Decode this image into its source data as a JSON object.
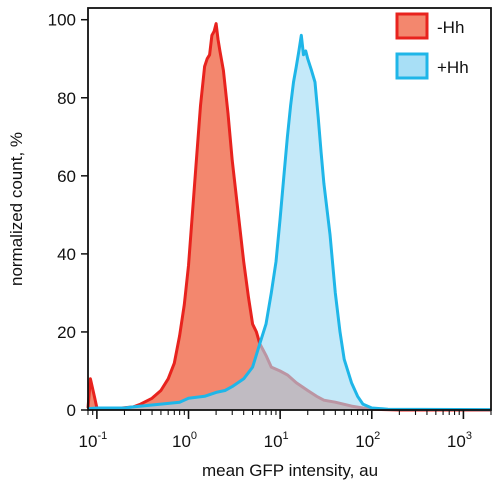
{
  "chart_data": {
    "type": "area",
    "xlabel": "mean GFP intensity, au",
    "ylabel": "normalized count, %",
    "x_scale": "log",
    "xlim": [
      0.08,
      2000
    ],
    "ylim": [
      0,
      103
    ],
    "x_ticks": [
      {
        "value": 0.1,
        "base": "10",
        "exp": "-1"
      },
      {
        "value": 1,
        "base": "10",
        "exp": "0"
      },
      {
        "value": 10,
        "base": "10",
        "exp": "1"
      },
      {
        "value": 100,
        "base": "10",
        "exp": "2"
      },
      {
        "value": 1000,
        "base": "10",
        "exp": "3"
      }
    ],
    "y_ticks": [
      "0",
      "20",
      "40",
      "60",
      "80",
      "100"
    ],
    "legend_position": "top-right",
    "series": [
      {
        "name": "-Hh",
        "stroke": "#e8231e",
        "fill": "#f27a5e",
        "points": [
          [
            0.08,
            0.5
          ],
          [
            0.085,
            8
          ],
          [
            0.095,
            3
          ],
          [
            0.1,
            0.5
          ],
          [
            0.12,
            0.3
          ],
          [
            0.15,
            0.3
          ],
          [
            0.2,
            0.6
          ],
          [
            0.25,
            0.8
          ],
          [
            0.3,
            1.5
          ],
          [
            0.4,
            3
          ],
          [
            0.5,
            5
          ],
          [
            0.6,
            8
          ],
          [
            0.7,
            12
          ],
          [
            0.8,
            19
          ],
          [
            0.9,
            27
          ],
          [
            1.0,
            37
          ],
          [
            1.1,
            50
          ],
          [
            1.2,
            62
          ],
          [
            1.35,
            78
          ],
          [
            1.5,
            88
          ],
          [
            1.6,
            90
          ],
          [
            1.7,
            91
          ],
          [
            1.8,
            96
          ],
          [
            1.9,
            97
          ],
          [
            2.0,
            99
          ],
          [
            2.1,
            95
          ],
          [
            2.2,
            92
          ],
          [
            2.4,
            87
          ],
          [
            2.7,
            76
          ],
          [
            3.0,
            64
          ],
          [
            3.5,
            50
          ],
          [
            4.0,
            38
          ],
          [
            4.5,
            29
          ],
          [
            5.0,
            22
          ],
          [
            5.5,
            20
          ],
          [
            6.0,
            17
          ],
          [
            7.0,
            14
          ],
          [
            8.0,
            11
          ],
          [
            10,
            10
          ],
          [
            12,
            9
          ],
          [
            15,
            7
          ],
          [
            20,
            5
          ],
          [
            25,
            3.5
          ],
          [
            30,
            2.5
          ],
          [
            40,
            2
          ],
          [
            60,
            1
          ],
          [
            80,
            0.5
          ],
          [
            100,
            0.2
          ],
          [
            200,
            0
          ],
          [
            2000,
            0
          ]
        ]
      },
      {
        "name": "+Hh",
        "stroke": "#1fb6e8",
        "fill": "#9fdcf5",
        "points": [
          [
            0.08,
            0.3
          ],
          [
            0.1,
            0.5
          ],
          [
            0.15,
            0.5
          ],
          [
            0.2,
            0.5
          ],
          [
            0.25,
            0.8
          ],
          [
            0.3,
            1
          ],
          [
            0.5,
            1.5
          ],
          [
            0.8,
            2
          ],
          [
            1.0,
            3
          ],
          [
            1.5,
            3.5
          ],
          [
            2.0,
            4.5
          ],
          [
            2.5,
            5
          ],
          [
            3.0,
            6
          ],
          [
            4.0,
            8
          ],
          [
            5.0,
            11
          ],
          [
            6.0,
            17
          ],
          [
            7.0,
            22
          ],
          [
            8.0,
            30
          ],
          [
            9.0,
            38
          ],
          [
            10,
            49
          ],
          [
            11,
            60
          ],
          [
            12,
            70
          ],
          [
            13,
            78
          ],
          [
            14,
            84
          ],
          [
            15,
            88
          ],
          [
            16,
            92
          ],
          [
            17,
            96
          ],
          [
            18,
            91
          ],
          [
            19,
            92
          ],
          [
            20,
            90
          ],
          [
            22,
            87
          ],
          [
            24,
            84
          ],
          [
            26,
            75
          ],
          [
            28,
            66
          ],
          [
            30,
            58
          ],
          [
            35,
            45
          ],
          [
            40,
            30
          ],
          [
            45,
            20
          ],
          [
            50,
            13
          ],
          [
            60,
            7
          ],
          [
            70,
            3.5
          ],
          [
            80,
            1.5
          ],
          [
            100,
            0.5
          ],
          [
            150,
            0.2
          ],
          [
            2000,
            0.1
          ]
        ]
      }
    ]
  }
}
